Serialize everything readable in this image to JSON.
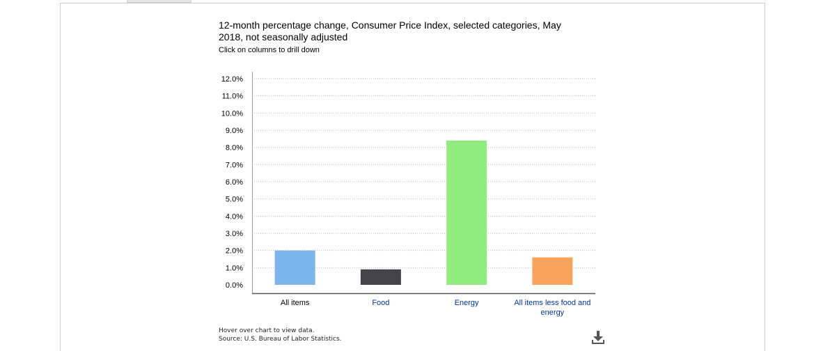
{
  "chart_data": {
    "type": "bar",
    "title": "12-month percentage change, Consumer Price Index, selected categories, May 2018, not seasonally adjusted",
    "subtitle": "Click on columns to drill down",
    "categories": [
      "All items",
      "Food",
      "Energy",
      "All items less food and energy"
    ],
    "category_lines": [
      [
        "All items"
      ],
      [
        "Food"
      ],
      [
        "Energy"
      ],
      [
        "All items less food and",
        "energy"
      ]
    ],
    "values": [
      2.0,
      0.9,
      8.4,
      1.6
    ],
    "colors": [
      "#7cb5ec",
      "#434348",
      "#90ed7d",
      "#f7a35c"
    ],
    "category_label_colors": [
      "#000000",
      "#003399",
      "#003399",
      "#003399"
    ],
    "ylim": [
      0,
      12
    ],
    "yticks": [
      "0.0%",
      "1.0%",
      "2.0%",
      "3.0%",
      "4.0%",
      "5.0%",
      "6.0%",
      "7.0%",
      "8.0%",
      "9.0%",
      "10.0%",
      "11.0%",
      "12.0%"
    ],
    "xlabel": "",
    "ylabel": "",
    "grid": true,
    "legend": false
  },
  "footer": {
    "hover_note": "Hover over chart to view data.",
    "source": "Source: U.S. Bureau of Labor Statistics."
  },
  "icons": {
    "download": "download-icon"
  }
}
